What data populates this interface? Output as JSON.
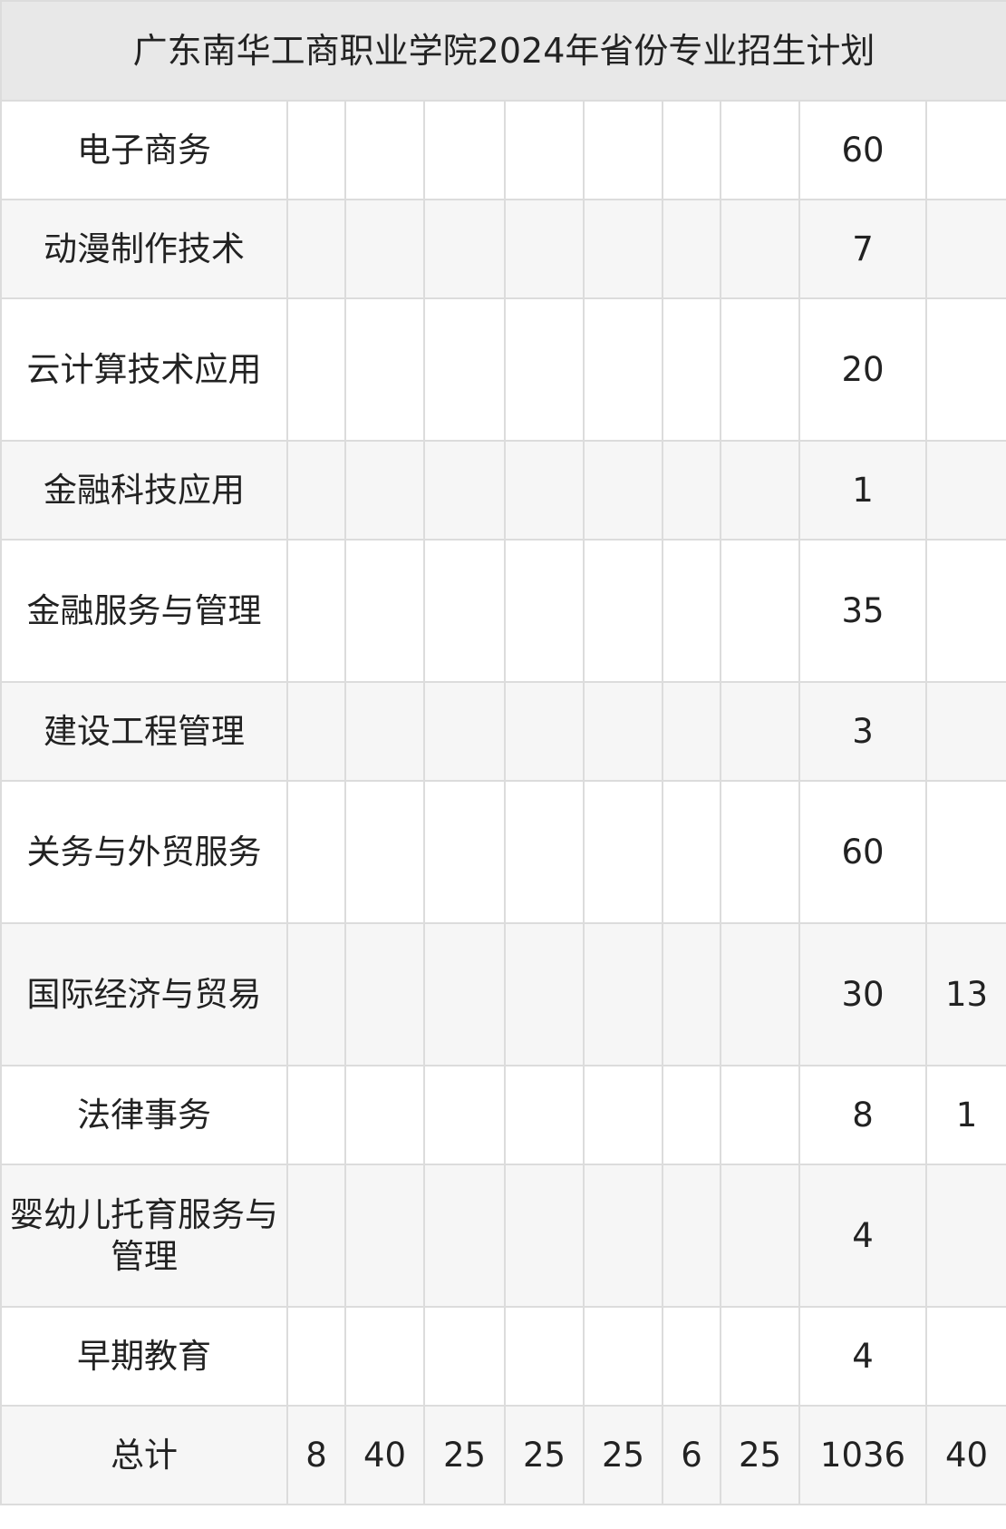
{
  "title": "广东南华工商职业学院2024年省份专业招生计划",
  "rows": [
    {
      "name": "电子商务",
      "cells": [
        "",
        "",
        "",
        "",
        "",
        "",
        "",
        "60",
        ""
      ]
    },
    {
      "name": "动漫制作技术",
      "cells": [
        "",
        "",
        "",
        "",
        "",
        "",
        "",
        "7",
        ""
      ]
    },
    {
      "name": "云计算技术应用",
      "cells": [
        "",
        "",
        "",
        "",
        "",
        "",
        "",
        "20",
        ""
      ]
    },
    {
      "name": "金融科技应用",
      "cells": [
        "",
        "",
        "",
        "",
        "",
        "",
        "",
        "1",
        ""
      ]
    },
    {
      "name": "金融服务与管理",
      "cells": [
        "",
        "",
        "",
        "",
        "",
        "",
        "",
        "35",
        ""
      ]
    },
    {
      "name": "建设工程管理",
      "cells": [
        "",
        "",
        "",
        "",
        "",
        "",
        "",
        "3",
        ""
      ]
    },
    {
      "name": "关务与外贸服务",
      "cells": [
        "",
        "",
        "",
        "",
        "",
        "",
        "",
        "60",
        ""
      ]
    },
    {
      "name": "国际经济与贸易",
      "cells": [
        "",
        "",
        "",
        "",
        "",
        "",
        "",
        "30",
        "13"
      ]
    },
    {
      "name": "法律事务",
      "cells": [
        "",
        "",
        "",
        "",
        "",
        "",
        "",
        "8",
        "1"
      ]
    },
    {
      "name": "婴幼儿托育服务与管理",
      "cells": [
        "",
        "",
        "",
        "",
        "",
        "",
        "",
        "4",
        ""
      ]
    },
    {
      "name": "早期教育",
      "cells": [
        "",
        "",
        "",
        "",
        "",
        "",
        "",
        "4",
        ""
      ]
    },
    {
      "name": "总计",
      "cells": [
        "8",
        "40",
        "25",
        "25",
        "25",
        "6",
        "25",
        "1036",
        "40"
      ]
    }
  ]
}
